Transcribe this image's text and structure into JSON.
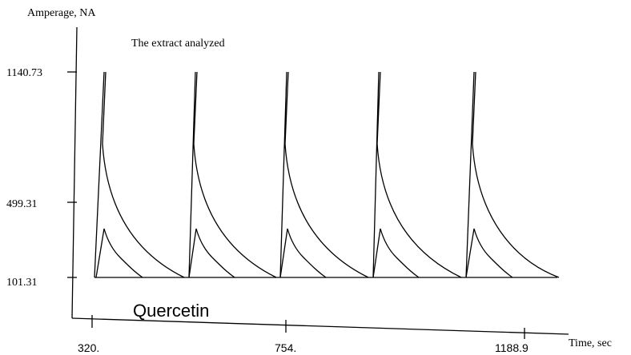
{
  "chart_data": {
    "type": "line",
    "title": "The extract analyzed",
    "ylabel": "Amperage, NA",
    "xlabel": "Time, sec",
    "y_ticks": [
      "101.31",
      "499.31",
      "1140.73"
    ],
    "x_ticks": [
      "320.",
      "754.",
      "1188.9"
    ],
    "annotation": "Quercetin",
    "grid": false,
    "legend": "none",
    "peak_times": [
      320,
      754,
      1188.9
    ],
    "series": [
      {
        "values": [
          {
            "x": 320,
            "y": 101.31
          },
          {
            "x": 374,
            "y": 1140.73
          },
          {
            "x": 374,
            "y": 1140.73
          },
          {
            "x": 392,
            "y": 499.31
          },
          {
            "x": 430,
            "y": 230
          },
          {
            "x": 500,
            "y": 150
          },
          {
            "x": 578,
            "y": 101.31
          },
          {
            "x": 640,
            "y": 1140.73
          },
          {
            "x": 658,
            "y": 499.31
          },
          {
            "x": 700,
            "y": 230
          },
          {
            "x": 754,
            "y": 170
          },
          {
            "x": 754,
            "y": 101.31
          },
          {
            "x": 808,
            "y": 1140.73
          },
          {
            "x": 826,
            "y": 499.31
          },
          {
            "x": 862,
            "y": 230
          },
          {
            "x": 930,
            "y": 150
          },
          {
            "x": 1010,
            "y": 101.31
          },
          {
            "x": 1066,
            "y": 1140.73
          },
          {
            "x": 1084,
            "y": 499.31
          },
          {
            "x": 1120,
            "y": 230
          },
          {
            "x": 1188.9,
            "y": 150
          },
          {
            "x": 1188.9,
            "y": 101.31
          },
          {
            "x": 1236,
            "y": 1140.73
          },
          {
            "x": 1254,
            "y": 499.31
          },
          {
            "x": 1290,
            "y": 230
          },
          {
            "x": 1370,
            "y": 101.31
          }
        ]
      },
      {
        "values": [
          {
            "x": 320,
            "y": 101.31
          },
          {
            "x": 374,
            "y": 310
          },
          {
            "x": 400,
            "y": 190
          },
          {
            "x": 430,
            "y": 101.31
          },
          {
            "x": 578,
            "y": 101.31
          },
          {
            "x": 640,
            "y": 310
          },
          {
            "x": 666,
            "y": 190
          },
          {
            "x": 700,
            "y": 101.31
          },
          {
            "x": 754,
            "y": 101.31
          },
          {
            "x": 808,
            "y": 310
          },
          {
            "x": 834,
            "y": 190
          },
          {
            "x": 866,
            "y": 101.31
          },
          {
            "x": 1010,
            "y": 101.31
          },
          {
            "x": 1066,
            "y": 310
          },
          {
            "x": 1092,
            "y": 190
          },
          {
            "x": 1122,
            "y": 101.31
          },
          {
            "x": 1188.9,
            "y": 101.31
          },
          {
            "x": 1236,
            "y": 310
          },
          {
            "x": 1262,
            "y": 190
          },
          {
            "x": 1292,
            "y": 101.31
          }
        ]
      }
    ]
  }
}
